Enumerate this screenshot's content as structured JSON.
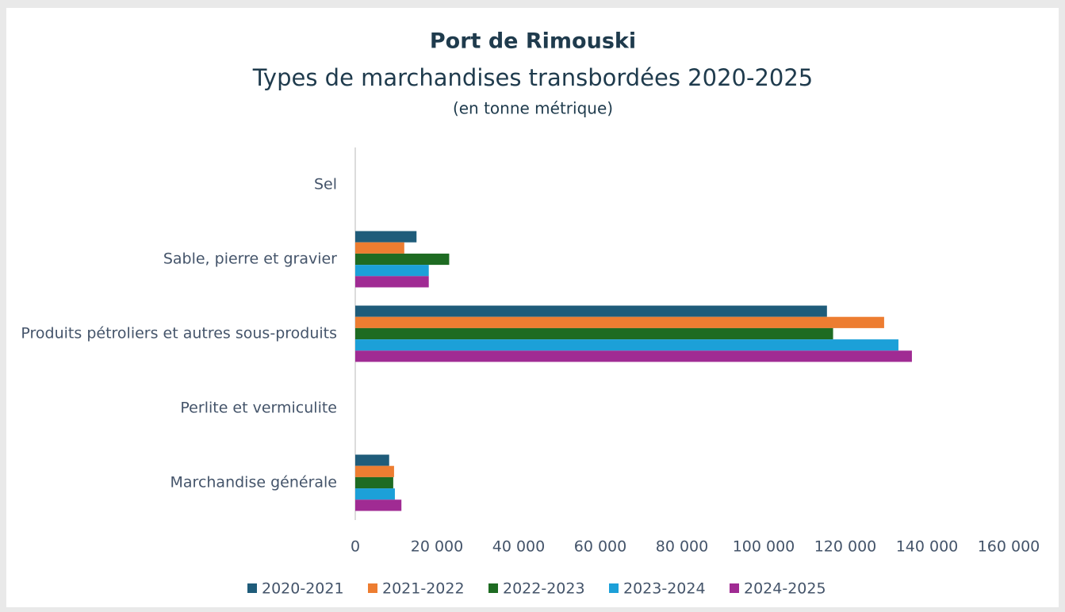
{
  "chart_data": {
    "type": "hbar",
    "title": "Port de Rimouski",
    "subtitle": "Types de marchandises transbordées 2020-2025",
    "note": "(en tonne métrique)",
    "categories": [
      "Sel",
      "Sable, pierre et gravier",
      "Produits pétroliers et autres sous-produits",
      "Perlite et vermiculite",
      "Marchandise générale"
    ],
    "series": [
      {
        "name": "2020-2021",
        "color": "#1f5c7a",
        "values": [
          0,
          15000,
          115500,
          0,
          8300
        ]
      },
      {
        "name": "2021-2022",
        "color": "#ed7d31",
        "values": [
          0,
          12000,
          129500,
          0,
          9500
        ]
      },
      {
        "name": "2022-2023",
        "color": "#1e6b22",
        "values": [
          0,
          23000,
          117000,
          0,
          9300
        ]
      },
      {
        "name": "2023-2024",
        "color": "#1ca0d8",
        "values": [
          0,
          18000,
          133000,
          0,
          9700
        ]
      },
      {
        "name": "2024-2025",
        "color": "#a02b93",
        "values": [
          0,
          18000,
          136300,
          0,
          11300
        ]
      }
    ],
    "xlim": [
      0,
      160000
    ],
    "xticks": [
      0,
      {
        "value": 20000,
        "label": "20 000"
      },
      {
        "value": 40000,
        "label": "40 000"
      },
      {
        "value": 60000,
        "label": "60 000"
      },
      {
        "value": 80000,
        "label": "80 000"
      },
      {
        "value": 100000,
        "label": "100 000"
      },
      {
        "value": 120000,
        "label": "120 000"
      },
      {
        "value": 140000,
        "label": "140 000"
      },
      {
        "value": 160000,
        "label": "160 000"
      }
    ],
    "legend": "bottom"
  }
}
